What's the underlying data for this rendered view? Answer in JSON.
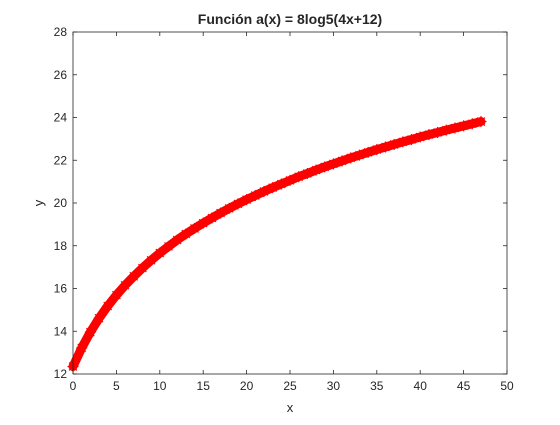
{
  "chart_data": {
    "type": "line",
    "title": "Función a(x) = 8log5(4x+12)",
    "xlabel": "x",
    "ylabel": "y",
    "xlim": [
      0,
      50
    ],
    "ylim": [
      12,
      28
    ],
    "xticks": [
      0,
      5,
      10,
      15,
      20,
      25,
      30,
      35,
      40,
      45,
      50
    ],
    "yticks": [
      12,
      14,
      16,
      18,
      20,
      22,
      24,
      26,
      28
    ],
    "xtick_labels": [
      "0",
      "5",
      "10",
      "15",
      "20",
      "25",
      "30",
      "35",
      "40",
      "45",
      "50"
    ],
    "ytick_labels": [
      "12",
      "14",
      "16",
      "18",
      "20",
      "22",
      "24",
      "26",
      "28"
    ],
    "grid": false,
    "legend": "none",
    "series": [
      {
        "color": "#ff0000",
        "marker": "*",
        "x": [
          0,
          1,
          2,
          3,
          4,
          5,
          6,
          7,
          8,
          9,
          10,
          11,
          12,
          13,
          14,
          15,
          16,
          17,
          18,
          19,
          20,
          21,
          22,
          23,
          24,
          25,
          26,
          27,
          28,
          29,
          30,
          31,
          32,
          33,
          34,
          35,
          36,
          37,
          38,
          39,
          40,
          41,
          42,
          43,
          44,
          45,
          46,
          47
        ],
        "y": [
          12.35,
          13.22,
          13.96,
          14.61,
          15.18,
          15.69,
          16.15,
          16.57,
          16.96,
          17.32,
          17.66,
          17.97,
          18.27,
          18.55,
          18.81,
          19.06,
          19.3,
          19.53,
          19.75,
          19.96,
          20.16,
          20.35,
          20.54,
          20.72,
          20.89,
          21.06,
          21.23,
          21.38,
          21.54,
          21.69,
          21.83,
          21.97,
          22.11,
          22.24,
          22.37,
          22.5,
          22.62,
          22.74,
          22.86,
          22.97,
          23.09,
          23.2,
          23.3,
          23.41,
          23.51,
          23.61,
          23.71,
          23.81
        ]
      }
    ]
  }
}
